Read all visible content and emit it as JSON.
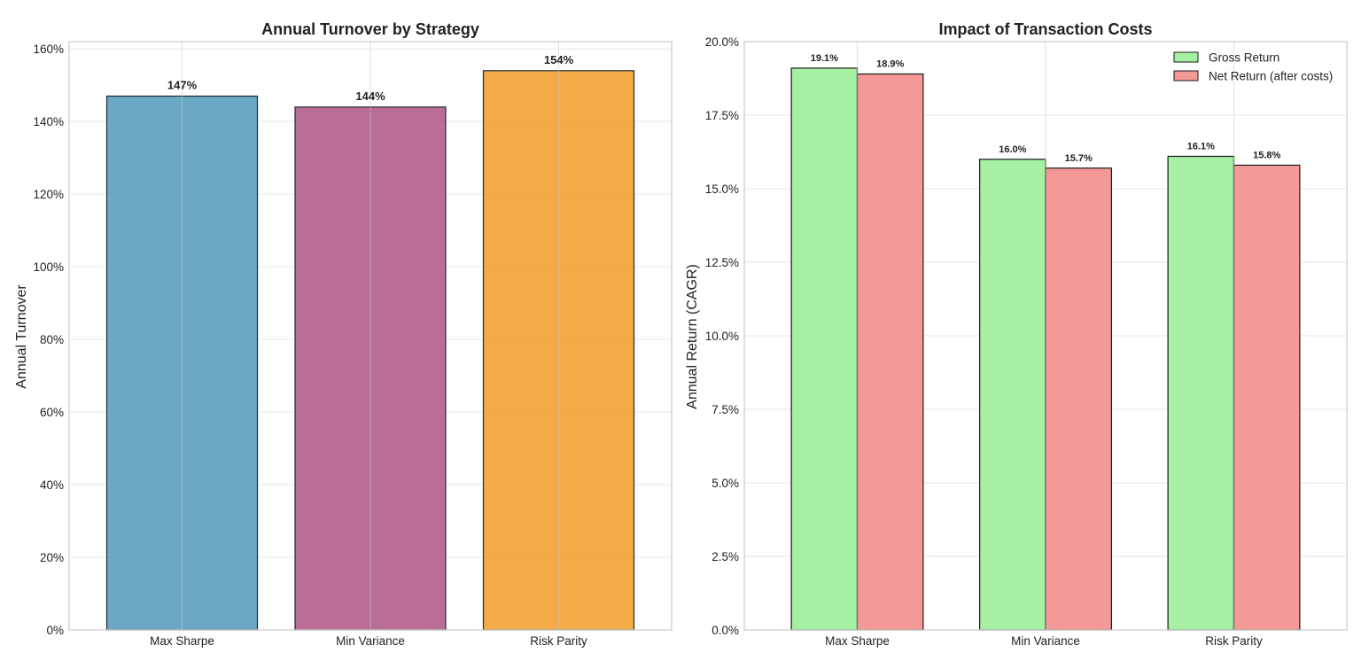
{
  "chart_data": [
    {
      "type": "bar",
      "title": "Annual Turnover by Strategy",
      "xlabel": "",
      "ylabel": "Annual Turnover",
      "categories": [
        "Max Sharpe",
        "Min Variance",
        "Risk Parity"
      ],
      "values": [
        147,
        144,
        154
      ],
      "value_labels": [
        "147%",
        "144%",
        "154%"
      ],
      "colors": [
        "#5a9fbe",
        "#b25e8c",
        "#f2a233"
      ],
      "ylim": [
        0,
        162
      ],
      "yticks": [
        0,
        20,
        40,
        60,
        80,
        100,
        120,
        140,
        160
      ],
      "ytick_labels": [
        "0%",
        "20%",
        "40%",
        "60%",
        "80%",
        "100%",
        "120%",
        "140%",
        "160%"
      ],
      "grid": true,
      "legend": "none"
    },
    {
      "type": "bar",
      "title": "Impact of Transaction Costs",
      "xlabel": "",
      "ylabel": "Annual Return (CAGR)",
      "categories": [
        "Max Sharpe",
        "Min Variance",
        "Risk Parity"
      ],
      "series": [
        {
          "name": "Gross Return",
          "values": [
            19.1,
            16.0,
            16.1
          ],
          "value_labels": [
            "19.1%",
            "16.0%",
            "16.1%"
          ],
          "color": "#a6f0a3"
        },
        {
          "name": "Net Return (after costs)",
          "values": [
            18.9,
            15.7,
            15.8
          ],
          "value_labels": [
            "18.9%",
            "15.7%",
            "15.8%"
          ],
          "color": "#f39a98"
        }
      ],
      "ylim": [
        0,
        20
      ],
      "yticks": [
        0,
        2.5,
        5,
        7.5,
        10,
        12.5,
        15,
        17.5,
        20
      ],
      "ytick_labels": [
        "0.0%",
        "2.5%",
        "5.0%",
        "7.5%",
        "10.0%",
        "12.5%",
        "15.0%",
        "17.5%",
        "20.0%"
      ],
      "grid": true,
      "legend": "top-right"
    }
  ]
}
